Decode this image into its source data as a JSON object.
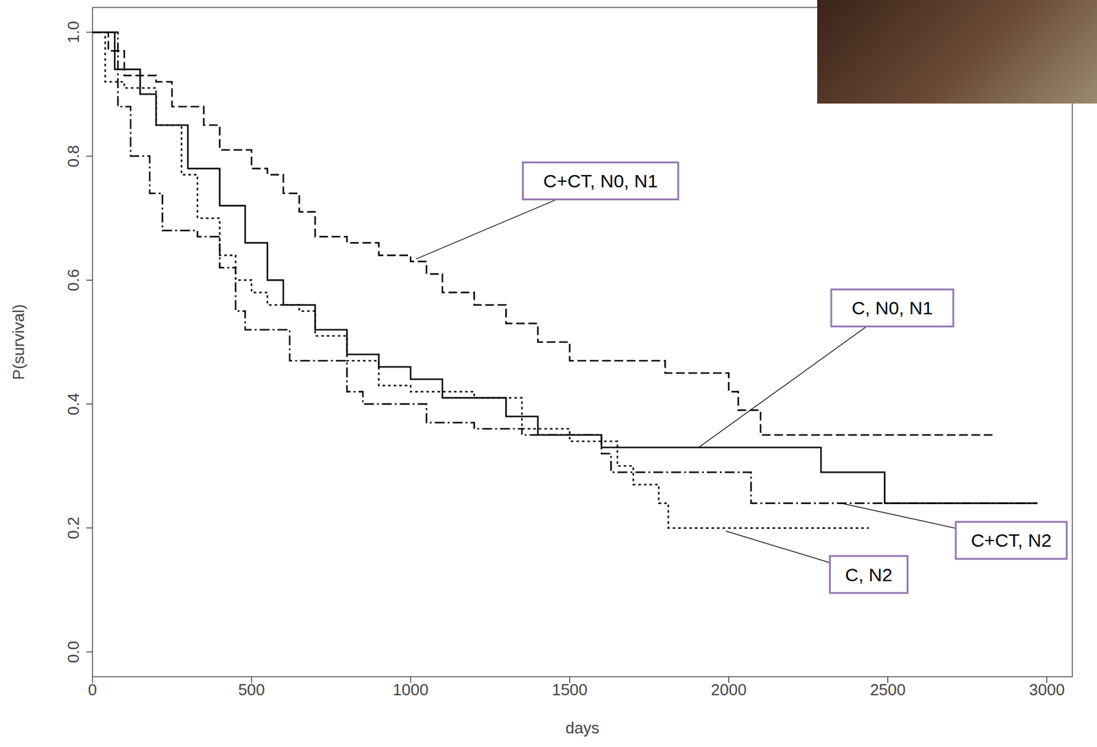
{
  "chart_data": {
    "type": "line",
    "x_label": "days",
    "y_label": "P(survival)",
    "xlim": [
      0,
      3080
    ],
    "ylim": [
      -0.04,
      1.04
    ],
    "xticks": [
      0,
      500,
      1000,
      1500,
      2000,
      2500,
      3000
    ],
    "yticks": [
      {
        "value": 0,
        "label": "0.0"
      },
      0.2,
      0.4,
      0.6,
      0.8,
      {
        "value": 1,
        "label": "1.0"
      }
    ],
    "series": [
      {
        "name": "C+CT, N0, N1",
        "color": "#000000",
        "line_style": "dashed",
        "x": [
          0,
          50,
          100,
          200,
          250,
          350,
          400,
          500,
          550,
          600,
          650,
          700,
          800,
          900,
          1000,
          1050,
          1100,
          1200,
          1300,
          1400,
          1500,
          1800,
          2000,
          2030,
          2100,
          2830
        ],
        "values": [
          1.0,
          0.97,
          0.93,
          0.92,
          0.88,
          0.85,
          0.81,
          0.78,
          0.77,
          0.74,
          0.71,
          0.67,
          0.66,
          0.64,
          0.63,
          0.61,
          0.58,
          0.56,
          0.53,
          0.5,
          0.47,
          0.45,
          0.42,
          0.39,
          0.35,
          0.35
        ]
      },
      {
        "name": "C, N0, N1",
        "color": "#000000",
        "line_style": "solid",
        "x": [
          0,
          70,
          150,
          200,
          300,
          400,
          480,
          550,
          600,
          700,
          800,
          900,
          1000,
          1100,
          1300,
          1400,
          1600,
          2290,
          2490,
          2970
        ],
        "values": [
          1.0,
          0.94,
          0.9,
          0.85,
          0.78,
          0.72,
          0.66,
          0.6,
          0.56,
          0.52,
          0.48,
          0.46,
          0.44,
          0.41,
          0.38,
          0.35,
          0.33,
          0.29,
          0.24,
          0.24
        ]
      },
      {
        "name": "C+CT, N2",
        "color": "#000000",
        "line_style": "dashdot",
        "x": [
          0,
          80,
          120,
          180,
          220,
          330,
          400,
          450,
          480,
          620,
          800,
          850,
          1050,
          1200,
          1350,
          1600,
          1630,
          2070,
          2970
        ],
        "values": [
          1.0,
          0.88,
          0.8,
          0.74,
          0.68,
          0.67,
          0.62,
          0.55,
          0.52,
          0.47,
          0.42,
          0.4,
          0.37,
          0.36,
          0.35,
          0.32,
          0.29,
          0.24,
          0.24
        ]
      },
      {
        "name": "C, N2",
        "color": "#000000",
        "line_style": "dotted",
        "x": [
          0,
          40,
          100,
          200,
          280,
          330,
          400,
          450,
          500,
          550,
          650,
          700,
          800,
          900,
          1000,
          1200,
          1350,
          1500,
          1650,
          1700,
          1780,
          1810,
          2440
        ],
        "values": [
          1.0,
          0.92,
          0.91,
          0.85,
          0.77,
          0.7,
          0.64,
          0.6,
          0.58,
          0.56,
          0.55,
          0.51,
          0.47,
          0.43,
          0.42,
          0.41,
          0.36,
          0.34,
          0.3,
          0.27,
          0.24,
          0.2,
          0.2
        ]
      }
    ],
    "annotations": [
      {
        "text": "C+CT, N0, N1",
        "x": 1017,
        "y": 0.634,
        "text_x": 1597,
        "text_y": 0.76
      },
      {
        "text": "C, N0, N1",
        "x": 1908,
        "y": 0.331,
        "text_x": 2514,
        "text_y": 0.555
      },
      {
        "text": "C+CT, N2",
        "x": 2352,
        "y": 0.24,
        "text_x": 2888,
        "text_y": 0.18
      },
      {
        "text": "C, N2",
        "x": 1991,
        "y": 0.195,
        "text_x": 2440,
        "text_y": 0.125
      }
    ]
  }
}
